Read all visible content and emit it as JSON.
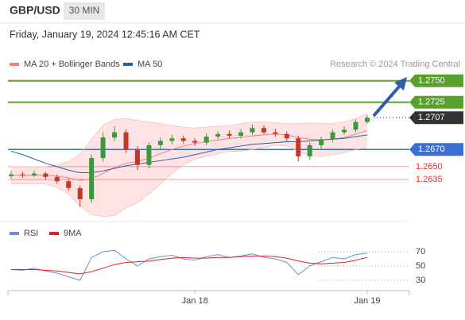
{
  "header": {
    "symbol": "GBP/USD",
    "timeframe": "30 MIN",
    "datetime": "Friday, January 19, 2024 12:45:16 AM CET",
    "source": "Research © 2024 Trading Central"
  },
  "chart_data": [
    {
      "type": "candlestick",
      "legend": [
        {
          "name": "MA 20 + Bollinger Bands",
          "color": "#f08080"
        },
        {
          "name": "MA 50",
          "color": "#2e5ea8"
        }
      ],
      "open": [
        1.2639,
        1.2641,
        1.264,
        1.2642,
        1.2638,
        1.2633,
        1.2625,
        1.2612,
        1.266,
        1.2684,
        1.269,
        1.267,
        1.2652,
        1.2675,
        1.268,
        1.2683,
        1.268,
        1.2678,
        1.2685,
        1.2688,
        1.2686,
        1.269,
        1.2695,
        1.269,
        1.2688,
        1.2683,
        1.2662,
        1.2675,
        1.2682,
        1.269,
        1.2693,
        1.2702
      ],
      "high": [
        1.2645,
        1.2644,
        1.2645,
        1.2644,
        1.2641,
        1.2636,
        1.2628,
        1.2664,
        1.269,
        1.2697,
        1.2693,
        1.2674,
        1.2678,
        1.2684,
        1.2687,
        1.2686,
        1.2683,
        1.2689,
        1.2691,
        1.2692,
        1.2694,
        1.2699,
        1.2698,
        1.2694,
        1.2691,
        1.2686,
        1.2678,
        1.2685,
        1.2693,
        1.2697,
        1.2705,
        1.271
      ],
      "low": [
        1.2636,
        1.2637,
        1.2638,
        1.2635,
        1.263,
        1.2622,
        1.2603,
        1.2608,
        1.2656,
        1.268,
        1.2666,
        1.2646,
        1.2648,
        1.2671,
        1.2676,
        1.2677,
        1.2674,
        1.2675,
        1.2682,
        1.2683,
        1.2683,
        1.2687,
        1.2688,
        1.2685,
        1.268,
        1.2656,
        1.2658,
        1.2671,
        1.2679,
        1.2687,
        1.269,
        1.27
      ],
      "close": [
        1.2641,
        1.264,
        1.2642,
        1.2638,
        1.2633,
        1.2625,
        1.2612,
        1.266,
        1.2684,
        1.269,
        1.267,
        1.2652,
        1.2675,
        1.268,
        1.2683,
        1.268,
        1.2678,
        1.2685,
        1.2688,
        1.2686,
        1.269,
        1.2695,
        1.269,
        1.2688,
        1.2683,
        1.2662,
        1.2675,
        1.2682,
        1.269,
        1.2693,
        1.2702,
        1.2707
      ],
      "up_color": "#3a9a3a",
      "down_color": "#c0392b",
      "ma20": [
        1.264,
        1.264,
        1.264,
        1.264,
        1.2639,
        1.2637,
        1.2634,
        1.2636,
        1.2642,
        1.2649,
        1.2654,
        1.2656,
        1.266,
        1.2665,
        1.267,
        1.2674,
        1.2677,
        1.2679,
        1.2681,
        1.2683,
        1.2684,
        1.2686,
        1.2687,
        1.2688,
        1.2687,
        1.2684,
        1.2682,
        1.2681,
        1.2682,
        1.2684,
        1.2688,
        1.2692
      ],
      "bb_upper": [
        1.265,
        1.265,
        1.265,
        1.265,
        1.2652,
        1.2656,
        1.2664,
        1.2682,
        1.2698,
        1.2705,
        1.2706,
        1.2704,
        1.2702,
        1.27,
        1.2698,
        1.2696,
        1.2695,
        1.2696,
        1.2697,
        1.2698,
        1.27,
        1.2702,
        1.2702,
        1.2701,
        1.27,
        1.27,
        1.2701,
        1.27,
        1.27,
        1.2702,
        1.2706,
        1.2712
      ],
      "bb_lower": [
        1.263,
        1.263,
        1.263,
        1.263,
        1.2626,
        1.2618,
        1.2604,
        1.2594,
        1.2592,
        1.2593,
        1.2602,
        1.2608,
        1.2618,
        1.263,
        1.2642,
        1.2652,
        1.2659,
        1.2662,
        1.2665,
        1.2668,
        1.2668,
        1.267,
        1.2672,
        1.2675,
        1.2674,
        1.2668,
        1.2663,
        1.2662,
        1.2664,
        1.2666,
        1.267,
        1.2672
      ],
      "ma50": [
        1.2668,
        1.2664,
        1.2659,
        1.2654,
        1.265,
        1.2646,
        1.2643,
        1.2643,
        1.2645,
        1.2648,
        1.2651,
        1.2653,
        1.2655,
        1.2657,
        1.2659,
        1.2661,
        1.2664,
        1.2667,
        1.267,
        1.2672,
        1.2674,
        1.2676,
        1.2677,
        1.2678,
        1.2679,
        1.2679,
        1.268,
        1.2681,
        1.2682,
        1.2683,
        1.2685,
        1.2687
      ],
      "ylim": [
        1.2587,
        1.2784
      ],
      "levels": [
        {
          "value": 1.275,
          "label": "1.2750",
          "color": "#5aa02c",
          "style": "box"
        },
        {
          "value": 1.2725,
          "label": "1.2725",
          "color": "#5aa02c",
          "style": "box"
        },
        {
          "value": 1.2707,
          "label": "1.2707",
          "color": "#333333",
          "style": "current"
        },
        {
          "value": 1.267,
          "label": "1.2670",
          "color": "#3b6fd4",
          "style": "box"
        },
        {
          "value": 1.265,
          "label": "1.2650",
          "color": "#e03030",
          "style": "text"
        },
        {
          "value": 1.2635,
          "label": "1.2635",
          "color": "#e03030",
          "style": "text"
        }
      ]
    },
    {
      "type": "line",
      "legend": [
        {
          "name": "RSI",
          "color": "#6a8fd8"
        },
        {
          "name": "9MA",
          "color": "#e02020"
        }
      ],
      "series": [
        {
          "name": "RSI",
          "color": "#6a8fd8",
          "values": [
            45,
            44,
            47,
            43,
            40,
            35,
            30,
            62,
            70,
            72,
            60,
            50,
            60,
            63,
            65,
            60,
            58,
            63,
            66,
            62,
            64,
            67,
            62,
            60,
            55,
            38,
            50,
            56,
            62,
            60,
            66,
            68
          ]
        },
        {
          "name": "9MA",
          "color": "#e02020",
          "values": [
            45,
            45,
            45,
            44,
            43,
            41,
            39,
            42,
            47,
            52,
            55,
            56,
            57,
            59,
            61,
            62,
            61,
            61,
            62,
            62,
            63,
            64,
            64,
            63,
            61,
            57,
            54,
            53,
            54,
            55,
            58,
            62
          ]
        }
      ],
      "ylim": [
        16,
        90
      ],
      "yticks": [
        70,
        50,
        30
      ],
      "xticks": [
        {
          "value": 16,
          "label": "Jan 18"
        },
        {
          "value": 31,
          "label": "Jan 19"
        }
      ]
    }
  ]
}
